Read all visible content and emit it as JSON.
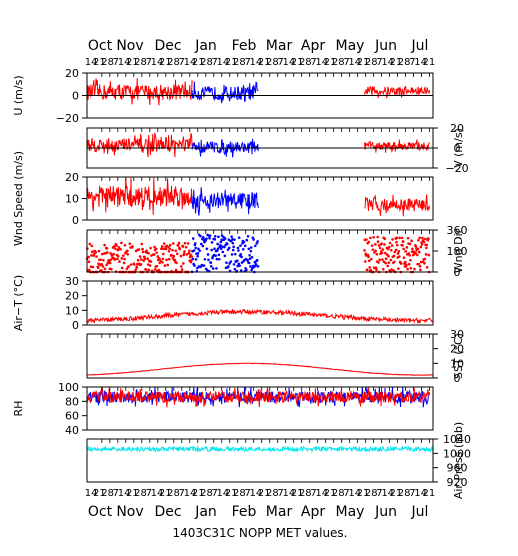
{
  "chart_data": {
    "type": "line",
    "title": "1403C31C NOPP MET values.",
    "x_axis": {
      "months": [
        "Oct",
        "Nov",
        "Dec",
        "Jan",
        "Feb",
        "Mar",
        "Apr",
        "May",
        "Jun",
        "Jul"
      ],
      "day_labels": [
        "14",
        "21",
        "28",
        "7",
        "14",
        "21",
        "28",
        "7",
        "14",
        "21",
        "28",
        "7",
        "14",
        "21",
        "28",
        "7",
        "14",
        "21",
        "28",
        "7",
        "14",
        "21",
        "28",
        "7",
        "14",
        "21",
        "28",
        "7",
        "14",
        "21",
        "28",
        "7",
        "14",
        "21",
        "28",
        "7",
        "14",
        "21",
        "28",
        "7",
        "14",
        "21"
      ],
      "range": [
        "Oct 1",
        "Jul 31"
      ]
    },
    "series_colors": {
      "primary": "#ff0000",
      "secondary": "#0000ff",
      "pressure": "#00e5ee"
    },
    "panels": [
      {
        "id": "u",
        "ylabel": "U (m/s)",
        "yticks": [
          "20",
          "0",
          "−20"
        ],
        "ylim": [
          -20,
          20
        ],
        "tick_side": "left",
        "data_periods": [
          {
            "color": "primary",
            "start": "Oct 1",
            "end": "Jan 1",
            "mean": 3,
            "amplitude": 7
          },
          {
            "color": "secondary",
            "start": "Jan 1",
            "end": "Feb 28",
            "mean": 2,
            "amplitude": 6
          },
          {
            "color": "primary",
            "start": "Jun 1",
            "end": "Jul 28",
            "mean": 4,
            "amplitude": 4
          }
        ]
      },
      {
        "id": "v",
        "ylabel": "V (m/s)",
        "yticks": [
          "20",
          "0",
          "−20"
        ],
        "ylim": [
          -20,
          20
        ],
        "tick_side": "right",
        "data_periods": [
          {
            "color": "primary",
            "start": "Oct 1",
            "end": "Jan 1",
            "mean": 3,
            "amplitude": 7
          },
          {
            "color": "secondary",
            "start": "Jan 1",
            "end": "Feb 28",
            "mean": 1,
            "amplitude": 6
          },
          {
            "color": "primary",
            "start": "Jun 1",
            "end": "Jul 28",
            "mean": 2,
            "amplitude": 4
          }
        ]
      },
      {
        "id": "spd",
        "ylabel": "Wnd Speed (m/s)",
        "yticks": [
          "20",
          "10",
          "0"
        ],
        "ylim": [
          0,
          20
        ],
        "tick_side": "left",
        "data_periods": [
          {
            "color": "primary",
            "start": "Oct 1",
            "end": "Jan 1",
            "mean": 11,
            "amplitude": 5
          },
          {
            "color": "secondary",
            "start": "Jan 1",
            "end": "Feb 28",
            "mean": 9,
            "amplitude": 4
          },
          {
            "color": "primary",
            "start": "Jun 1",
            "end": "Jul 28",
            "mean": 7,
            "amplitude": 3
          }
        ]
      },
      {
        "id": "dir",
        "ylabel": "Wnd Dir",
        "yticks": [
          "360",
          "180",
          "0"
        ],
        "ylim": [
          0,
          360
        ],
        "tick_side": "right",
        "data_periods": [
          {
            "color": "primary",
            "start": "Oct 1",
            "end": "Jan 1",
            "mean": 90,
            "amplitude": 160
          },
          {
            "color": "secondary",
            "start": "Jan 1",
            "end": "Feb 28",
            "mean": 160,
            "amplitude": 160
          },
          {
            "color": "primary",
            "start": "Jun 1",
            "end": "Jul 28",
            "mean": 140,
            "amplitude": 160
          }
        ]
      },
      {
        "id": "airt",
        "ylabel": "Air−T (°C)",
        "yticks": [
          "30",
          "20",
          "10",
          "0"
        ],
        "ylim": [
          0,
          30
        ],
        "tick_side": "left",
        "data_periods": [
          {
            "color": "primary",
            "start": "Oct 1",
            "end": "Jul 31",
            "mean": 6,
            "amplitude": 1.5
          }
        ]
      },
      {
        "id": "sst",
        "ylabel": "SST (°C)",
        "yticks": [
          "30",
          "20",
          "10",
          "0"
        ],
        "ylim": [
          0,
          30
        ],
        "tick_side": "right",
        "data_periods": [
          {
            "color": "primary",
            "start": "Oct 1",
            "end": "Jul 31",
            "mean": 6,
            "amplitude": 0.2
          }
        ]
      },
      {
        "id": "rh",
        "ylabel": "RH",
        "yticks": [
          "100",
          "80",
          "60",
          "40"
        ],
        "ylim": [
          40,
          100
        ],
        "tick_side": "left",
        "data_periods": [
          {
            "color": "secondary",
            "start": "Oct 1",
            "end": "Jul 28",
            "mean": 86,
            "amplitude": 8
          },
          {
            "color": "primary",
            "start": "Oct 1",
            "end": "Jul 28",
            "mean": 86,
            "amplitude": 8
          }
        ]
      },
      {
        "id": "pres",
        "ylabel": "Air Press (mb)",
        "yticks": [
          "1040",
          "1000",
          "960",
          "920"
        ],
        "ylim": [
          920,
          1040
        ],
        "tick_side": "right",
        "data_periods": [
          {
            "color": "pressure",
            "start": "Oct 1",
            "end": "Jul 31",
            "mean": 1012,
            "amplitude": 6
          }
        ]
      }
    ]
  }
}
